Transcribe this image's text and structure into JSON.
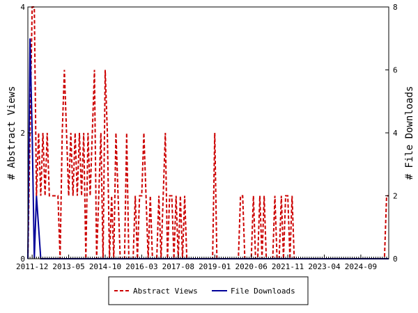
{
  "chart_data": {
    "type": "line",
    "title": "",
    "ylabel_left": "# Abstract Views",
    "ylabel_right": "# File Downloads",
    "ylim_left": [
      0,
      4
    ],
    "ylim_right": [
      0,
      8
    ],
    "yticks_left": [
      "0",
      "2",
      "4"
    ],
    "yticks_right": [
      "0",
      "2",
      "4",
      "6",
      "8"
    ],
    "x_tick_labels": [
      "2011-12",
      "2013-05",
      "2014-10",
      "2016-03",
      "2017-08",
      "2019-01",
      "2020-06",
      "2021-11",
      "2023-04",
      "2024-09"
    ],
    "x_start": "2011-10",
    "x_end": "2025-10",
    "grid": false,
    "legend_position": "bottom-center",
    "series": [
      {
        "name": "Abstract Views",
        "axis": "left",
        "color": "#cc0000",
        "style": "dashed",
        "points": [
          [
            "2011-10",
            0
          ],
          [
            "2011-11",
            2
          ],
          [
            "2011-12",
            4
          ],
          [
            "2012-01",
            4
          ],
          [
            "2012-02",
            1
          ],
          [
            "2012-03",
            2
          ],
          [
            "2012-04",
            1
          ],
          [
            "2012-05",
            2
          ],
          [
            "2012-06",
            1
          ],
          [
            "2012-07",
            2
          ],
          [
            "2012-08",
            1
          ],
          [
            "2012-09",
            1
          ],
          [
            "2012-10",
            1
          ],
          [
            "2012-11",
            1
          ],
          [
            "2012-12",
            1
          ],
          [
            "2013-01",
            0
          ],
          [
            "2013-02",
            2
          ],
          [
            "2013-03",
            3
          ],
          [
            "2013-04",
            2
          ],
          [
            "2013-05",
            1
          ],
          [
            "2013-06",
            2
          ],
          [
            "2013-07",
            1
          ],
          [
            "2013-08",
            2
          ],
          [
            "2013-09",
            1
          ],
          [
            "2013-10",
            2
          ],
          [
            "2013-11",
            1
          ],
          [
            "2013-12",
            2
          ],
          [
            "2014-01",
            0
          ],
          [
            "2014-02",
            2
          ],
          [
            "2014-03",
            1
          ],
          [
            "2014-04",
            2
          ],
          [
            "2014-05",
            3
          ],
          [
            "2014-06",
            0
          ],
          [
            "2014-07",
            1
          ],
          [
            "2014-08",
            2
          ],
          [
            "2014-09",
            0
          ],
          [
            "2014-10",
            3
          ],
          [
            "2014-11",
            2
          ],
          [
            "2014-12",
            0
          ],
          [
            "2015-01",
            1
          ],
          [
            "2015-02",
            0
          ],
          [
            "2015-03",
            2
          ],
          [
            "2015-04",
            1
          ],
          [
            "2015-05",
            0
          ],
          [
            "2015-06",
            0
          ],
          [
            "2015-07",
            0
          ],
          [
            "2015-08",
            2
          ],
          [
            "2015-09",
            0
          ],
          [
            "2015-10",
            0
          ],
          [
            "2015-11",
            0
          ],
          [
            "2015-12",
            1
          ],
          [
            "2016-01",
            0
          ],
          [
            "2016-02",
            1
          ],
          [
            "2016-03",
            1
          ],
          [
            "2016-04",
            2
          ],
          [
            "2016-05",
            1
          ],
          [
            "2016-06",
            0
          ],
          [
            "2016-07",
            1
          ],
          [
            "2016-08",
            0
          ],
          [
            "2016-09",
            0
          ],
          [
            "2016-10",
            0
          ],
          [
            "2016-11",
            1
          ],
          [
            "2016-12",
            0
          ],
          [
            "2017-01",
            1
          ],
          [
            "2017-02",
            2
          ],
          [
            "2017-03",
            0
          ],
          [
            "2017-04",
            1
          ],
          [
            "2017-05",
            1
          ],
          [
            "2017-06",
            0
          ],
          [
            "2017-07",
            1
          ],
          [
            "2017-08",
            0
          ],
          [
            "2017-09",
            1
          ],
          [
            "2017-10",
            0
          ],
          [
            "2017-11",
            1
          ],
          [
            "2017-12",
            0
          ],
          [
            "2018-01",
            0
          ],
          [
            "2018-02",
            0
          ],
          [
            "2018-03",
            0
          ],
          [
            "2018-04",
            0
          ],
          [
            "2018-05",
            0
          ],
          [
            "2018-06",
            0
          ],
          [
            "2018-07",
            0
          ],
          [
            "2018-08",
            0
          ],
          [
            "2018-09",
            0
          ],
          [
            "2018-10",
            0
          ],
          [
            "2018-11",
            0
          ],
          [
            "2018-12",
            0
          ],
          [
            "2019-01",
            2
          ],
          [
            "2019-02",
            0
          ],
          [
            "2019-03",
            0
          ],
          [
            "2019-04",
            0
          ],
          [
            "2019-05",
            0
          ],
          [
            "2019-06",
            0
          ],
          [
            "2019-07",
            0
          ],
          [
            "2019-08",
            0
          ],
          [
            "2019-09",
            0
          ],
          [
            "2019-10",
            0
          ],
          [
            "2019-11",
            0
          ],
          [
            "2019-12",
            0
          ],
          [
            "2020-01",
            1
          ],
          [
            "2020-02",
            1
          ],
          [
            "2020-03",
            0
          ],
          [
            "2020-04",
            0
          ],
          [
            "2020-05",
            0
          ],
          [
            "2020-06",
            0
          ],
          [
            "2020-07",
            1
          ],
          [
            "2020-08",
            0
          ],
          [
            "2020-09",
            0
          ],
          [
            "2020-10",
            1
          ],
          [
            "2020-11",
            0
          ],
          [
            "2020-12",
            1
          ],
          [
            "2021-01",
            0
          ],
          [
            "2021-02",
            0
          ],
          [
            "2021-03",
            0
          ],
          [
            "2021-04",
            0
          ],
          [
            "2021-05",
            1
          ],
          [
            "2021-06",
            0
          ],
          [
            "2021-07",
            0
          ],
          [
            "2021-08",
            1
          ],
          [
            "2021-09",
            0
          ],
          [
            "2021-10",
            1
          ],
          [
            "2021-11",
            1
          ],
          [
            "2021-12",
            0
          ],
          [
            "2022-01",
            1
          ],
          [
            "2022-02",
            0
          ],
          [
            "2022-03",
            0
          ],
          [
            "2022-04",
            0
          ],
          [
            "2022-05",
            0
          ],
          [
            "2022-06",
            0
          ],
          [
            "2022-07",
            0
          ],
          [
            "2022-08",
            0
          ],
          [
            "2022-09",
            0
          ],
          [
            "2022-10",
            0
          ],
          [
            "2022-11",
            0
          ],
          [
            "2022-12",
            0
          ],
          [
            "2023-01",
            0
          ],
          [
            "2023-02",
            0
          ],
          [
            "2023-03",
            0
          ],
          [
            "2023-04",
            0
          ],
          [
            "2023-05",
            0
          ],
          [
            "2023-06",
            0
          ],
          [
            "2023-07",
            0
          ],
          [
            "2023-08",
            0
          ],
          [
            "2023-09",
            0
          ],
          [
            "2023-10",
            0
          ],
          [
            "2023-11",
            0
          ],
          [
            "2023-12",
            0
          ],
          [
            "2024-01",
            0
          ],
          [
            "2024-02",
            0
          ],
          [
            "2024-03",
            0
          ],
          [
            "2024-04",
            0
          ],
          [
            "2024-05",
            0
          ],
          [
            "2024-06",
            0
          ],
          [
            "2024-07",
            0
          ],
          [
            "2024-08",
            0
          ],
          [
            "2024-09",
            0
          ],
          [
            "2024-10",
            0
          ],
          [
            "2024-11",
            0
          ],
          [
            "2024-12",
            0
          ],
          [
            "2025-01",
            0
          ],
          [
            "2025-02",
            0
          ],
          [
            "2025-03",
            0
          ],
          [
            "2025-04",
            0
          ],
          [
            "2025-05",
            0
          ],
          [
            "2025-06",
            0
          ],
          [
            "2025-07",
            0
          ],
          [
            "2025-08",
            0
          ],
          [
            "2025-09",
            1
          ],
          [
            "2025-10",
            1
          ]
        ]
      },
      {
        "name": "File Downloads",
        "axis": "right",
        "color": "#000099",
        "style": "solid",
        "points": [
          [
            "2011-10",
            0
          ],
          [
            "2011-11",
            7
          ],
          [
            "2011-12",
            4
          ],
          [
            "2012-01",
            0
          ],
          [
            "2012-02",
            2
          ],
          [
            "2012-03",
            1
          ],
          [
            "2012-04",
            0
          ],
          [
            "2012-05",
            0
          ],
          [
            "2025-10",
            0
          ]
        ]
      }
    ]
  }
}
